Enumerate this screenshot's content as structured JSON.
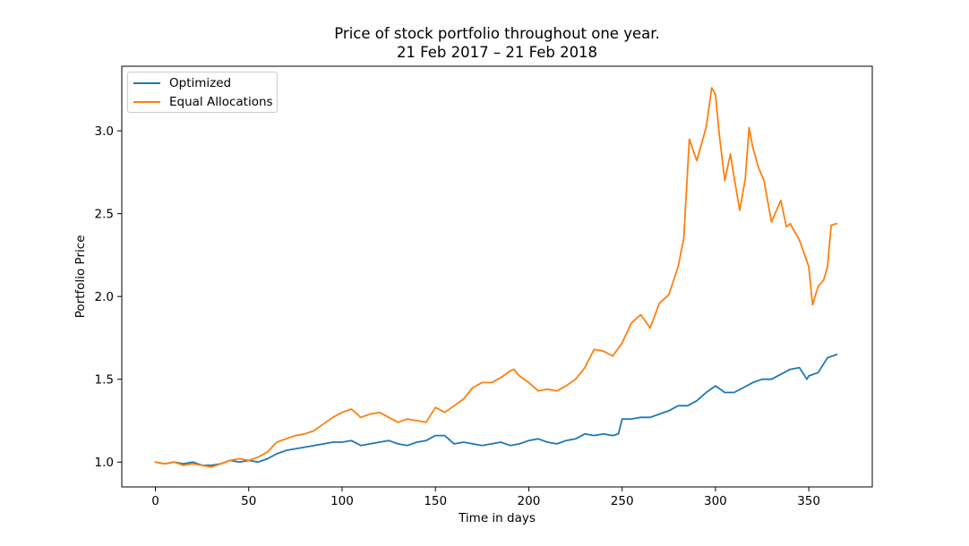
{
  "chart_data": {
    "type": "line",
    "title_line1": "Price of stock portfolio throughout one year.",
    "title_line2": "21 Feb 2017 – 21 Feb 2018",
    "xlabel": "Time in days",
    "ylabel": "Portfolio Price",
    "xlim": [
      -18,
      384
    ],
    "ylim": [
      0.85,
      3.39
    ],
    "xticks": [
      0,
      50,
      100,
      150,
      200,
      250,
      300,
      350
    ],
    "xtick_labels": [
      "0",
      "50",
      "100",
      "150",
      "200",
      "250",
      "300",
      "350"
    ],
    "yticks": [
      1.0,
      1.5,
      2.0,
      2.5,
      3.0
    ],
    "ytick_labels": [
      "1.0",
      "1.5",
      "2.0",
      "2.5",
      "3.0"
    ],
    "grid": false,
    "legend_position": "top-left",
    "series": [
      {
        "name": "Optimized",
        "color": "#1f77b4",
        "x": [
          0,
          5,
          10,
          15,
          20,
          25,
          30,
          35,
          40,
          45,
          50,
          55,
          60,
          65,
          70,
          75,
          80,
          85,
          90,
          95,
          100,
          105,
          110,
          115,
          120,
          125,
          130,
          135,
          140,
          145,
          150,
          155,
          160,
          165,
          170,
          175,
          180,
          185,
          190,
          195,
          200,
          205,
          210,
          215,
          220,
          225,
          230,
          235,
          240,
          245,
          248,
          250,
          255,
          260,
          265,
          270,
          275,
          280,
          285,
          290,
          295,
          300,
          305,
          310,
          315,
          320,
          325,
          330,
          335,
          340,
          345,
          349,
          350,
          355,
          360,
          365
        ],
        "y": [
          1.0,
          0.99,
          1.0,
          0.99,
          1.0,
          0.98,
          0.98,
          0.99,
          1.01,
          1.0,
          1.01,
          1.0,
          1.02,
          1.05,
          1.07,
          1.08,
          1.09,
          1.1,
          1.11,
          1.12,
          1.12,
          1.13,
          1.1,
          1.11,
          1.12,
          1.13,
          1.11,
          1.1,
          1.12,
          1.13,
          1.16,
          1.16,
          1.11,
          1.12,
          1.11,
          1.1,
          1.11,
          1.12,
          1.1,
          1.11,
          1.13,
          1.14,
          1.12,
          1.11,
          1.13,
          1.14,
          1.17,
          1.16,
          1.17,
          1.16,
          1.17,
          1.26,
          1.26,
          1.27,
          1.27,
          1.29,
          1.31,
          1.34,
          1.34,
          1.37,
          1.42,
          1.46,
          1.42,
          1.42,
          1.45,
          1.48,
          1.5,
          1.5,
          1.53,
          1.56,
          1.57,
          1.5,
          1.52,
          1.54,
          1.63,
          1.65
        ]
      },
      {
        "name": "Equal Allocations",
        "color": "#ff7f0e",
        "x": [
          0,
          5,
          10,
          15,
          20,
          25,
          30,
          35,
          40,
          45,
          50,
          55,
          60,
          65,
          70,
          75,
          80,
          85,
          90,
          95,
          100,
          105,
          110,
          115,
          120,
          125,
          130,
          135,
          140,
          145,
          150,
          155,
          160,
          165,
          170,
          175,
          180,
          185,
          190,
          192,
          195,
          200,
          205,
          210,
          215,
          220,
          225,
          230,
          235,
          240,
          245,
          250,
          255,
          260,
          265,
          270,
          275,
          280,
          283,
          286,
          290,
          295,
          298,
          300,
          302,
          305,
          308,
          310,
          313,
          316,
          318,
          320,
          323,
          326,
          330,
          335,
          338,
          340,
          345,
          350,
          352,
          355,
          358,
          360,
          362,
          365
        ],
        "y": [
          1.0,
          0.99,
          1.0,
          0.98,
          0.99,
          0.98,
          0.97,
          0.99,
          1.01,
          1.02,
          1.01,
          1.03,
          1.06,
          1.12,
          1.14,
          1.16,
          1.17,
          1.19,
          1.23,
          1.27,
          1.3,
          1.32,
          1.27,
          1.29,
          1.3,
          1.27,
          1.24,
          1.26,
          1.25,
          1.24,
          1.33,
          1.3,
          1.34,
          1.38,
          1.45,
          1.48,
          1.48,
          1.51,
          1.55,
          1.56,
          1.52,
          1.48,
          1.43,
          1.44,
          1.43,
          1.46,
          1.5,
          1.57,
          1.68,
          1.67,
          1.64,
          1.72,
          1.84,
          1.89,
          1.81,
          1.96,
          2.01,
          2.18,
          2.35,
          2.95,
          2.82,
          3.02,
          3.26,
          3.22,
          2.98,
          2.7,
          2.86,
          2.72,
          2.52,
          2.71,
          3.02,
          2.9,
          2.78,
          2.7,
          2.45,
          2.58,
          2.42,
          2.44,
          2.34,
          2.18,
          1.95,
          2.06,
          2.1,
          2.18,
          2.43,
          2.44
        ]
      }
    ]
  }
}
